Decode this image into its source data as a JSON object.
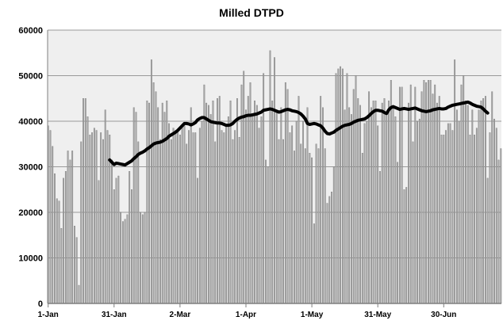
{
  "chart_data": {
    "type": "bar",
    "title": "Milled DTPD",
    "xlabel": "",
    "ylabel": "",
    "ylim": [
      0,
      60000
    ],
    "y_ticks": [
      0,
      10000,
      20000,
      30000,
      40000,
      50000,
      60000
    ],
    "y_tick_labels": [
      "0",
      "10000",
      "20000",
      "30000",
      "40000",
      "50000",
      "60000"
    ],
    "x_tick_labels": [
      "1-Jan",
      "31-Jan",
      "2-Mar",
      "1-Apr",
      "1-May",
      "31-May",
      "30-Jun"
    ],
    "x_tick_days": [
      0,
      30,
      60,
      90,
      120,
      150,
      180
    ],
    "grid": "horizontal",
    "plot_background": "#efefef",
    "colors": {
      "bars": "#a6a6a6",
      "bar_edge": "#6b6b6b",
      "average_line": "#000000"
    },
    "daily_values": [
      39000,
      38000,
      34500,
      28500,
      23000,
      22500,
      16500,
      27500,
      29000,
      33500,
      31500,
      33500,
      17000,
      14500,
      4000,
      35500,
      45000,
      45000,
      41000,
      37000,
      37500,
      38500,
      38000,
      27000,
      37500,
      36000,
      42500,
      38000,
      37000,
      31500,
      25000,
      27500,
      28000,
      20000,
      18000,
      18500,
      19500,
      29000,
      25000,
      43000,
      42000,
      35500,
      20000,
      19500,
      20000,
      44500,
      44000,
      53500,
      48500,
      46500,
      43000,
      36000,
      44000,
      42000,
      44500,
      39500,
      36000,
      38500,
      38000,
      38000,
      37000,
      39000,
      39000,
      35000,
      38000,
      43000,
      37500,
      37500,
      27500,
      38500,
      40000,
      48000,
      44000,
      43500,
      41500,
      44500,
      35500,
      45000,
      45500,
      38000,
      37500,
      39000,
      41000,
      44500,
      36000,
      38000,
      45000,
      36500,
      48000,
      51000,
      42500,
      45500,
      48500,
      41500,
      44500,
      43500,
      38500,
      41000,
      50500,
      31500,
      30000,
      55500,
      44500,
      54000,
      42000,
      36000,
      43000,
      36000,
      48500,
      47000,
      37500,
      39000,
      33500,
      40000,
      45500,
      35000,
      40000,
      34000,
      43000,
      33000,
      32000,
      17500,
      35000,
      34000,
      45500,
      43000,
      34000,
      22000,
      23500,
      24500,
      30000,
      50500,
      51500,
      52000,
      51500,
      42500,
      50500,
      43000,
      41500,
      47000,
      50000,
      45000,
      43500,
      33000,
      39500,
      40000,
      46500,
      43000,
      44500,
      44500,
      39000,
      29000,
      44000,
      45000,
      42000,
      44500,
      49000,
      43500,
      41000,
      31000,
      47500,
      47500,
      25000,
      25500,
      44000,
      48000,
      35500,
      47500,
      40000,
      40500,
      46500,
      49000,
      48500,
      49000,
      49000,
      46000,
      48000,
      44000,
      45500,
      37000,
      37000,
      38000,
      39500,
      39500,
      38000,
      53500,
      42500,
      40000,
      48000,
      50000,
      44500,
      43500,
      37000,
      42500,
      37000,
      38500,
      42500,
      44500,
      45000,
      45500,
      27500,
      37500,
      46500,
      40500,
      38500,
      31500,
      34000
    ],
    "series": [
      {
        "type": "line",
        "start_day": 28,
        "values": [
          31500,
          31000,
          30500,
          30800,
          30700,
          30600,
          30500,
          30400,
          30700,
          31000,
          31300,
          31800,
          32200,
          32700,
          33000,
          33200,
          33500,
          33900,
          34200,
          34600,
          35000,
          35200,
          35300,
          35400,
          35600,
          35900,
          36200,
          36700,
          37000,
          37300,
          37600,
          38000,
          38500,
          39000,
          39500,
          39500,
          39400,
          39200,
          39400,
          39700,
          40300,
          40600,
          40800,
          40800,
          40500,
          40200,
          39900,
          39800,
          39700,
          39600,
          39600,
          39500,
          39300,
          39100,
          39100,
          39200,
          39500,
          40000,
          40400,
          40700,
          40900,
          41000,
          41200,
          41300,
          41300,
          41400,
          41500,
          41600,
          41800,
          42000,
          42400,
          42500,
          42600,
          42700,
          42600,
          42400,
          42200,
          42000,
          42100,
          42300,
          42500,
          42600,
          42500,
          42300,
          42200,
          42100,
          41900,
          41600,
          41100,
          40500,
          39500,
          39300,
          39400,
          39500,
          39400,
          39200,
          39000,
          38500,
          37800,
          37300,
          37200,
          37400,
          37600,
          38000,
          38300,
          38600,
          38900,
          39100,
          39200,
          39300,
          39500,
          39800,
          40000,
          40200,
          40300,
          40400,
          40500,
          40800,
          41200,
          41700,
          42100,
          42400,
          42400,
          42300,
          42200,
          41900,
          41700,
          42500,
          43000,
          43200,
          43000,
          42800,
          42600,
          42700,
          42800,
          42700,
          42600,
          42700,
          42800,
          42900,
          42700,
          42500,
          42300,
          42200,
          42100,
          42200,
          42300,
          42500,
          42600,
          42700,
          42800,
          42700,
          42700,
          42800,
          43100,
          43300,
          43500,
          43600,
          43700,
          43800,
          43900,
          44000,
          44100,
          44200,
          44000,
          43700,
          43500,
          43300,
          43200,
          43100,
          42700,
          42200,
          41800
        ]
      }
    ]
  }
}
